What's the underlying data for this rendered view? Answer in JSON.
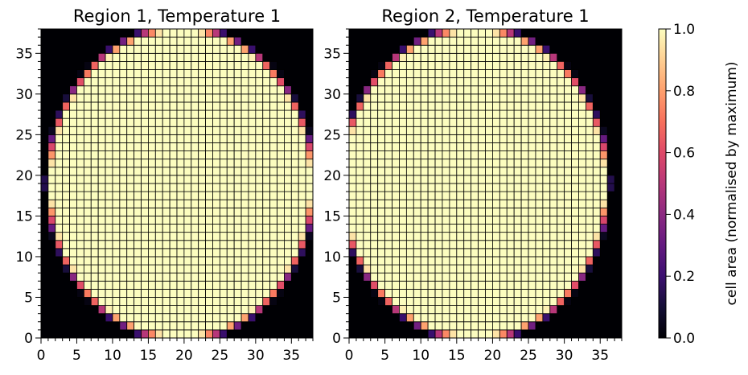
{
  "chart_data": [
    {
      "type": "heatmap",
      "title": "Region 1, Temperature 1",
      "xlim": [
        0,
        38
      ],
      "ylim": [
        0,
        38
      ],
      "xticks": [
        0,
        5,
        10,
        15,
        20,
        25,
        30,
        35
      ],
      "yticks": [
        0,
        5,
        10,
        15,
        20,
        25,
        30,
        35
      ],
      "grid": true,
      "value_description": "cell area (normalised by maximum), 38x38 grid of cells, 0 outside an elliptical region, 1 inside, fractional values along the boundary",
      "shape": {
        "kind": "ellipse",
        "center": [
          19.5,
          19
        ],
        "semi_axis_x": 18.6,
        "semi_axis_y": 19.2
      }
    },
    {
      "type": "heatmap",
      "title": "Region 2, Temperature 1",
      "xlim": [
        0,
        38
      ],
      "ylim": [
        0,
        38
      ],
      "xticks": [
        0,
        5,
        10,
        15,
        20,
        25,
        30,
        35
      ],
      "yticks": [
        0,
        5,
        10,
        15,
        20,
        25,
        30,
        35
      ],
      "grid": true,
      "value_description": "cell area (normalised by maximum), 38x38 grid of cells, 0 outside an elliptical region, 1 inside, fractional values along the boundary",
      "shape": {
        "kind": "ellipse",
        "center": [
          17.5,
          19
        ],
        "semi_axis_x": 18.6,
        "semi_axis_y": 19.2
      }
    }
  ],
  "colorbar": {
    "label": "cell area (normalised by maximum)",
    "colormap": "magma",
    "range": [
      0,
      1
    ],
    "ticks": [
      "0.0",
      "0.2",
      "0.4",
      "0.6",
      "0.8",
      "1.0"
    ],
    "tick_values": [
      0,
      0.2,
      0.4,
      0.6,
      0.8,
      1.0
    ]
  },
  "colors": {
    "outside": "#000004",
    "full": "#fcfdbf",
    "gridline": "#000000"
  }
}
